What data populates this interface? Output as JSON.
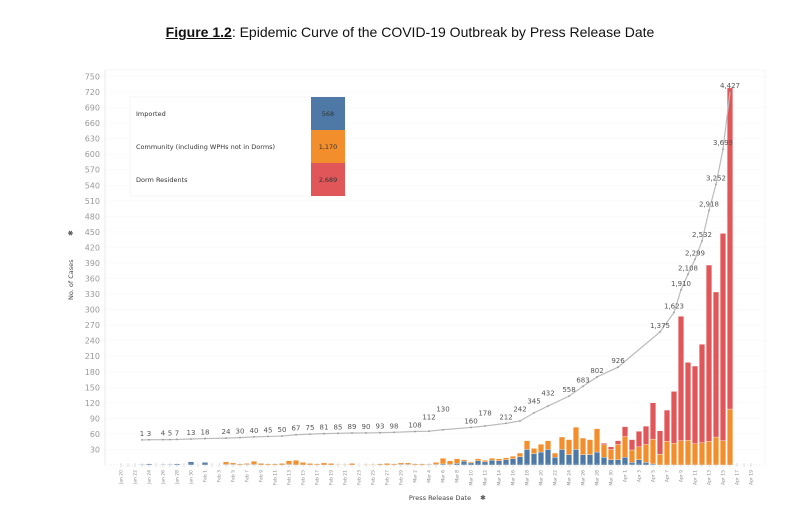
{
  "chart_data": {
    "type": "bar",
    "stacked": true,
    "title_prefix": "Figure 1.2",
    "title": ": Epidemic Curve of the COVID-19 Outbreak by Press Release Date",
    "xlabel": "Press Release Date",
    "ylabel": "No. of Cases",
    "ylim": [
      0,
      750
    ],
    "yticks": [
      30,
      60,
      90,
      120,
      150,
      180,
      210,
      240,
      270,
      300,
      330,
      360,
      390,
      420,
      450,
      480,
      510,
      540,
      570,
      600,
      630,
      660,
      690,
      720,
      750
    ],
    "xticks": [
      "Jan 20",
      "Jan 22",
      "Jan 24",
      "Jan 26",
      "Jan 28",
      "Jan 30",
      "Feb 1",
      "Feb 3",
      "Feb 5",
      "Feb 7",
      "Feb 9",
      "Feb 11",
      "Feb 13",
      "Feb 15",
      "Feb 17",
      "Feb 19",
      "Feb 21",
      "Feb 23",
      "Feb 25",
      "Feb 27",
      "Feb 29",
      "Mar 2",
      "Mar 4",
      "Mar 6",
      "Mar 8",
      "Mar 10",
      "Mar 12",
      "Mar 14",
      "Mar 16",
      "Mar 18",
      "Mar 20",
      "Mar 22",
      "Mar 24",
      "Mar 26",
      "Mar 28",
      "Mar 30",
      "Apr 1",
      "Apr 3",
      "Apr 5",
      "Apr 7",
      "Apr 9",
      "Apr 11",
      "Apr 13",
      "Apr 15",
      "Apr 17",
      "Apr 19"
    ],
    "grid": true,
    "legend_placement": "top-left",
    "dates": [
      "Jan 23",
      "Jan 24",
      "Jan 25",
      "Jan 26",
      "Jan 27",
      "Jan 28",
      "Jan 29",
      "Jan 30",
      "Jan 31",
      "Feb 1",
      "Feb 2",
      "Feb 3",
      "Feb 4",
      "Feb 5",
      "Feb 6",
      "Feb 7",
      "Feb 8",
      "Feb 9",
      "Feb 10",
      "Feb 11",
      "Feb 12",
      "Feb 13",
      "Feb 14",
      "Feb 15",
      "Feb 16",
      "Feb 17",
      "Feb 18",
      "Feb 19",
      "Feb 20",
      "Feb 21",
      "Feb 22",
      "Feb 23",
      "Feb 24",
      "Feb 25",
      "Feb 26",
      "Feb 27",
      "Feb 28",
      "Feb 29",
      "Mar 1",
      "Mar 2",
      "Mar 3",
      "Mar 4",
      "Mar 5",
      "Mar 6",
      "Mar 7",
      "Mar 8",
      "Mar 9",
      "Mar 10",
      "Mar 11",
      "Mar 12",
      "Mar 13",
      "Mar 14",
      "Mar 15",
      "Mar 16",
      "Mar 17",
      "Mar 18",
      "Mar 19",
      "Mar 20",
      "Mar 21",
      "Mar 22",
      "Mar 23",
      "Mar 24",
      "Mar 25",
      "Mar 26",
      "Mar 27",
      "Mar 28",
      "Mar 29",
      "Mar 30",
      "Mar 31",
      "Apr 1",
      "Apr 2",
      "Apr 3",
      "Apr 4",
      "Apr 5",
      "Apr 6",
      "Apr 7",
      "Apr 8",
      "Apr 9",
      "Apr 10",
      "Apr 11",
      "Apr 12",
      "Apr 13",
      "Apr 14",
      "Apr 15",
      "Apr 16"
    ],
    "series": [
      {
        "name": "Imported",
        "total": "568",
        "color": "#4e79a7",
        "values": [
          1,
          2,
          0,
          1,
          1,
          2,
          0,
          6,
          0,
          5,
          0,
          0,
          1,
          1,
          0,
          1,
          1,
          0,
          0,
          0,
          0,
          1,
          0,
          0,
          0,
          0,
          0,
          0,
          0,
          0,
          0,
          0,
          0,
          0,
          0,
          0,
          0,
          1,
          1,
          0,
          0,
          1,
          1,
          2,
          1,
          3,
          7,
          4,
          8,
          6,
          9,
          8,
          10,
          12,
          16,
          30,
          22,
          25,
          30,
          15,
          30,
          20,
          30,
          20,
          20,
          25,
          15,
          10,
          10,
          15,
          5,
          10,
          5,
          2,
          0,
          0,
          0,
          0,
          0,
          0,
          0,
          0,
          0,
          0,
          0
        ]
      },
      {
        "name": "Community (including WPHs not in Dorms)",
        "total": "1,170",
        "color": "#f28e2b",
        "values": [
          0,
          0,
          0,
          0,
          0,
          0,
          0,
          0,
          0,
          0,
          0,
          0,
          5,
          3,
          2,
          2,
          6,
          3,
          2,
          2,
          3,
          7,
          9,
          5,
          3,
          2,
          4,
          3,
          1,
          1,
          3,
          0,
          1,
          1,
          2,
          3,
          2,
          3,
          3,
          2,
          2,
          1,
          4,
          11,
          7,
          9,
          3,
          2,
          4,
          3,
          4,
          4,
          4,
          5,
          7,
          17,
          10,
          15,
          17,
          8,
          24,
          29,
          43,
          32,
          29,
          45,
          24,
          20,
          30,
          40,
          24,
          25,
          35,
          48,
          21,
          46,
          42,
          47,
          48,
          41,
          43,
          46,
          54,
          47,
          108
        ]
      },
      {
        "name": "Dorm Residents",
        "total": "2,689",
        "color": "#e15759",
        "values": [
          0,
          0,
          0,
          0,
          0,
          0,
          0,
          0,
          0,
          0,
          0,
          0,
          0,
          0,
          0,
          0,
          0,
          0,
          0,
          0,
          0,
          0,
          0,
          0,
          0,
          0,
          0,
          0,
          0,
          0,
          0,
          0,
          0,
          0,
          0,
          0,
          0,
          0,
          0,
          0,
          0,
          0,
          0,
          0,
          0,
          0,
          0,
          0,
          0,
          0,
          0,
          0,
          0,
          0,
          0,
          0,
          0,
          0,
          0,
          0,
          0,
          0,
          0,
          0,
          0,
          0,
          3,
          5,
          7,
          19,
          20,
          30,
          35,
          70,
          45,
          60,
          100,
          240,
          150,
          150,
          190,
          340,
          280,
          400,
          620
        ]
      }
    ],
    "cumulative": {
      "color": "#bbbbbb",
      "points": [
        {
          "date": "Jan 23",
          "label": "1"
        },
        {
          "date": "Jan 24",
          "label": "3"
        },
        {
          "date": "Jan 26",
          "label": "4"
        },
        {
          "date": "Jan 27",
          "label": "5"
        },
        {
          "date": "Jan 28",
          "label": "7"
        },
        {
          "date": "Jan 30",
          "label": "13"
        },
        {
          "date": "Feb 1",
          "label": "18"
        },
        {
          "date": "Feb 4",
          "label": "24"
        },
        {
          "date": "Feb 6",
          "label": "30"
        },
        {
          "date": "Feb 8",
          "label": "40"
        },
        {
          "date": "Feb 10",
          "label": "45"
        },
        {
          "date": "Feb 12",
          "label": "50"
        },
        {
          "date": "Feb 14",
          "label": "67"
        },
        {
          "date": "Feb 16",
          "label": "75"
        },
        {
          "date": "Feb 18",
          "label": "81"
        },
        {
          "date": "Feb 20",
          "label": "85"
        },
        {
          "date": "Feb 22",
          "label": "89"
        },
        {
          "date": "Feb 24",
          "label": "90"
        },
        {
          "date": "Feb 26",
          "label": "93"
        },
        {
          "date": "Feb 28",
          "label": "98"
        },
        {
          "date": "Mar 2",
          "label": "108"
        },
        {
          "date": "Mar 4",
          "label": "112"
        },
        {
          "date": "Mar 6",
          "label": "130"
        },
        {
          "date": "Mar 10",
          "label": "160"
        },
        {
          "date": "Mar 12",
          "label": "178"
        },
        {
          "date": "Mar 15",
          "label": "212"
        },
        {
          "date": "Mar 17",
          "label": "242"
        },
        {
          "date": "Mar 19",
          "label": "345"
        },
        {
          "date": "Mar 21",
          "label": "432"
        },
        {
          "date": "Mar 24",
          "label": "558"
        },
        {
          "date": "Mar 26",
          "label": "683"
        },
        {
          "date": "Mar 28",
          "label": "802"
        },
        {
          "date": "Mar 31",
          "label": "926"
        },
        {
          "date": "Apr 6",
          "label": "1,375"
        },
        {
          "date": "Apr 8",
          "label": "1,623"
        },
        {
          "date": "Apr 9",
          "label": "1,910"
        },
        {
          "date": "Apr 10",
          "label": "2,108"
        },
        {
          "date": "Apr 11",
          "label": "2,299"
        },
        {
          "date": "Apr 12",
          "label": "2,532"
        },
        {
          "date": "Apr 13",
          "label": "2,918"
        },
        {
          "date": "Apr 14",
          "label": "3,252"
        },
        {
          "date": "Apr 15",
          "label": "3,699"
        },
        {
          "date": "Apr 16",
          "label": "4,427"
        }
      ]
    }
  }
}
